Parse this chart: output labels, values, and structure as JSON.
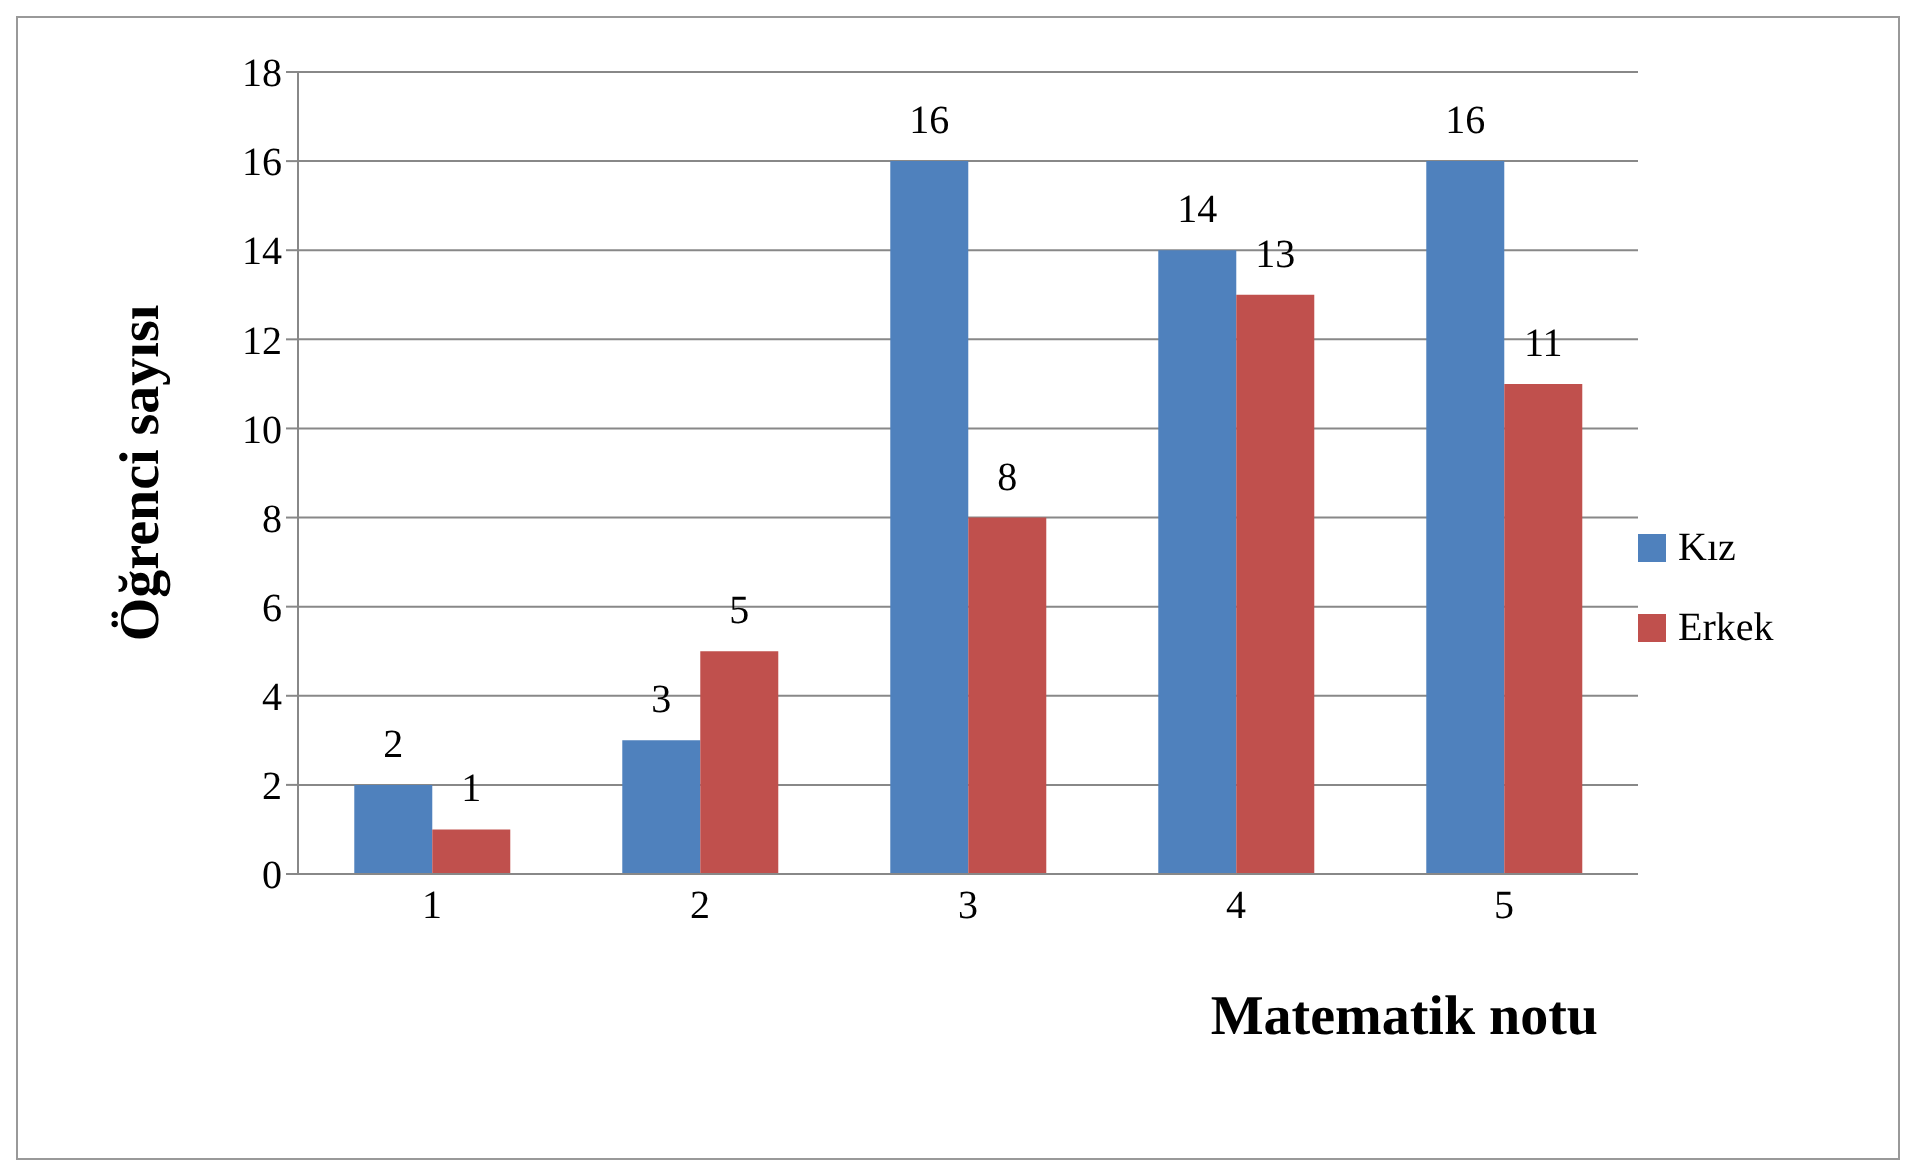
{
  "chart_data": {
    "type": "bar",
    "xlabel": "Matematik notu",
    "ylabel": "Öğrenci sayısı",
    "categories": [
      "1",
      "2",
      "3",
      "4",
      "5"
    ],
    "series": [
      {
        "name": "Kız",
        "color": "#4f81bd",
        "values": [
          2,
          3,
          16,
          14,
          16
        ]
      },
      {
        "name": "Erkek",
        "color": "#c0504d",
        "values": [
          1,
          5,
          8,
          13,
          11
        ]
      }
    ],
    "ylim": [
      0,
      18
    ],
    "yticks": [
      0,
      2,
      4,
      6,
      8,
      10,
      12,
      14,
      16,
      18
    ],
    "grid": "y",
    "legend": "right",
    "data_labels": true
  }
}
